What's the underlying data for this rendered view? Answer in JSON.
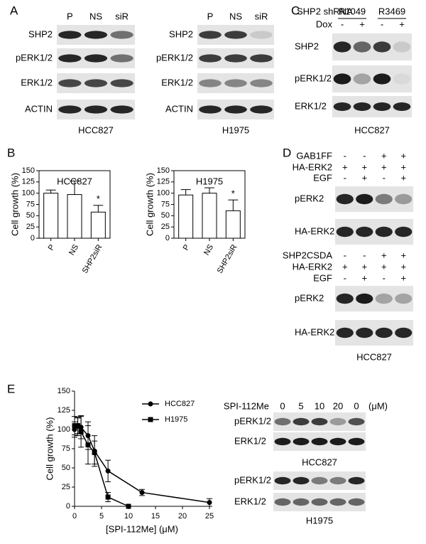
{
  "panels": {
    "A": {
      "label": "A",
      "blots": [
        {
          "header": [
            "P",
            "NS",
            "siR"
          ],
          "rows": [
            "SHP2",
            "pERK1/2",
            "ERK1/2",
            "ACTIN"
          ],
          "cell": "HCC827"
        },
        {
          "header": [
            "P",
            "NS",
            "siR"
          ],
          "rows": [
            "SHP2",
            "pERK1/2",
            "ERK1/2",
            "ACTIN"
          ],
          "cell": "H1975"
        }
      ]
    },
    "B": {
      "label": "B"
    },
    "C": {
      "label": "C",
      "shrna": "SHP2 shRNA",
      "clones": [
        "R1049",
        "R3469"
      ],
      "dox": "Dox",
      "dox_signs": [
        "-",
        "+",
        "-",
        "+"
      ],
      "rows": [
        "SHP2",
        "pERK1/2",
        "ERK1/2"
      ],
      "cell": "HCC827"
    },
    "D": {
      "label": "D",
      "blocks": [
        {
          "conditions": [
            {
              "name": "GAB1FF",
              "signs": [
                "-",
                "-",
                "+",
                "+"
              ]
            },
            {
              "name": "HA-ERK2",
              "signs": [
                "+",
                "+",
                "+",
                "+"
              ]
            },
            {
              "name": "EGF",
              "signs": [
                "-",
                "+",
                "-",
                "+"
              ]
            }
          ],
          "rows": [
            "pERK2",
            "HA-ERK2"
          ]
        },
        {
          "conditions": [
            {
              "name": "SHP2CSDA",
              "signs": [
                "-",
                "-",
                "+",
                "+"
              ]
            },
            {
              "name": "HA-ERK2",
              "signs": [
                "+",
                "+",
                "+",
                "+"
              ]
            },
            {
              "name": "EGF",
              "signs": [
                "-",
                "+",
                "-",
                "+"
              ]
            }
          ],
          "rows": [
            "pERK2",
            "HA-ERK2"
          ]
        }
      ],
      "cell": "HCC827"
    },
    "E": {
      "label": "E",
      "treatment": "SPI-112Me",
      "doses": [
        "0",
        "5",
        "10",
        "20",
        "0"
      ],
      "unit": "(μM)",
      "blots": [
        {
          "rows": [
            "pERK1/2",
            "ERK1/2"
          ],
          "cell": "HCC827"
        },
        {
          "rows": [
            "pERK1/2",
            "ERK1/2"
          ],
          "cell": "H1975"
        }
      ]
    }
  },
  "chart_data": [
    {
      "type": "bar",
      "title": "HCC827",
      "ylabel": "Cell growth (%)",
      "categories": [
        "P",
        "NS",
        "SHP2siR"
      ],
      "values": [
        100,
        97,
        58
      ],
      "errors": [
        7,
        30,
        15
      ],
      "annotations": [
        null,
        null,
        "*"
      ],
      "color": "#ffffff",
      "ylim": [
        0,
        150
      ],
      "yticks": [
        0,
        25,
        50,
        75,
        100,
        125,
        150
      ]
    },
    {
      "type": "bar",
      "title": "H1975",
      "ylabel": "Cell growth (%)",
      "categories": [
        "P",
        "NS",
        "SHP2siR"
      ],
      "values": [
        96,
        100,
        61
      ],
      "errors": [
        12,
        12,
        24
      ],
      "annotations": [
        null,
        null,
        "*"
      ],
      "color": "#ffffff",
      "ylim": [
        0,
        150
      ],
      "yticks": [
        0,
        25,
        50,
        75,
        100,
        125,
        150
      ]
    },
    {
      "type": "line",
      "xlabel": "[SPI-112Me] (μM)",
      "ylabel": "Cell growth (%)",
      "legend": "upper right",
      "series": [
        {
          "name": "HCC827",
          "color": "#000000",
          "marker": "circle",
          "x": [
            0,
            0.6,
            1.2,
            2.5,
            3.7,
            6.2,
            12.5,
            25
          ],
          "values": [
            100,
            104,
            103,
            92,
            72,
            46,
            18,
            5
          ],
          "errors": [
            10,
            12,
            15,
            18,
            20,
            14,
            4,
            5
          ]
        },
        {
          "name": "H1975",
          "color": "#000000",
          "marker": "square",
          "x": [
            0,
            0.6,
            1.2,
            2.5,
            3.7,
            6.2,
            10
          ],
          "values": [
            105,
            105,
            97,
            80,
            70,
            12,
            0
          ],
          "errors": [
            12,
            10,
            20,
            25,
            15,
            6,
            0
          ]
        }
      ],
      "xlim": [
        0,
        25
      ],
      "ylim": [
        0,
        150
      ],
      "xticks": [
        0,
        5,
        10,
        15,
        20,
        25
      ],
      "yticks": [
        0,
        25,
        50,
        75,
        100,
        125,
        150
      ]
    }
  ]
}
